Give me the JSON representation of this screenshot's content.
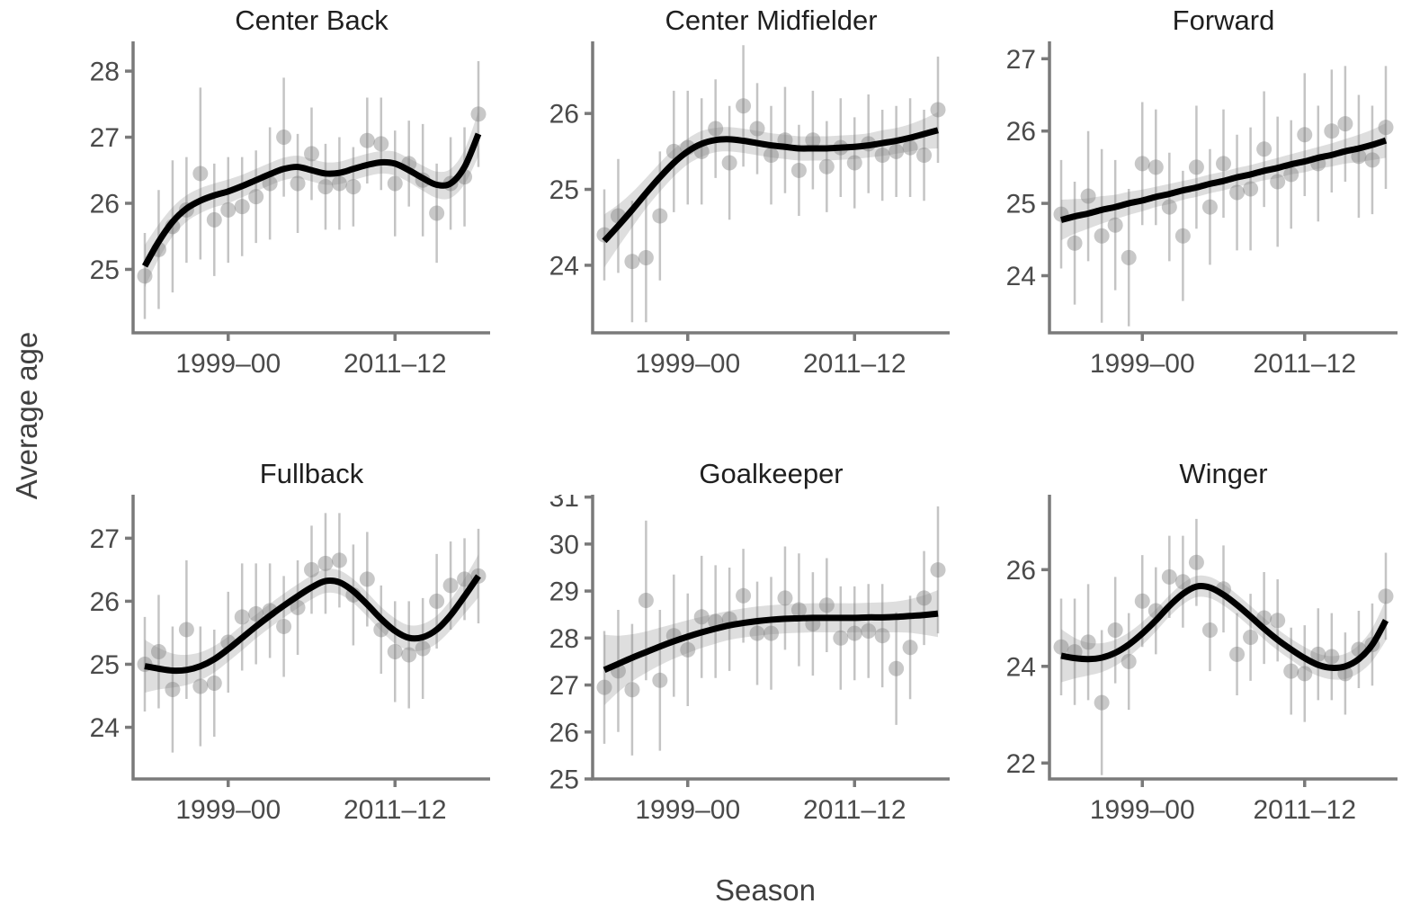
{
  "figure": {
    "y_axis_label": "Average age",
    "x_axis_label": "Season",
    "background_color": "#ffffff",
    "axis_line_color": "#7a7a7a",
    "tick_text_color": "#4a4a4a",
    "title_text_color": "#1f1f1f",
    "point_color": "rgba(125,125,125,0.42)",
    "errorbar_color": "rgba(125,125,125,0.45)",
    "ribbon_color": "rgba(125,125,125,0.25)",
    "smooth_color": "#000000"
  },
  "chart_data": {
    "type": "scatter",
    "smoother": "loess with confidence ribbon",
    "title": "",
    "xlabel": "Season",
    "ylabel": "Average age",
    "grid": false,
    "legend": "none",
    "x": [
      "1993–94",
      "1994–95",
      "1995–96",
      "1996–97",
      "1997–98",
      "1998–99",
      "1999–00",
      "2000–01",
      "2001–02",
      "2002–03",
      "2003–04",
      "2004–05",
      "2005–06",
      "2006–07",
      "2007–08",
      "2008–09",
      "2009–10",
      "2010–11",
      "2011–12",
      "2012–13",
      "2013–14",
      "2014–15",
      "2015–16",
      "2016–17",
      "2017–18"
    ],
    "x_tick_indices": [
      6,
      18
    ],
    "x_tick_labels": [
      "1999–00",
      "2011–12"
    ],
    "panels": [
      {
        "title": "Center Back",
        "y_ticks": [
          25,
          26,
          27,
          28
        ],
        "ylim": [
          24.04,
          28.45
        ],
        "points": [
          24.9,
          25.3,
          25.65,
          25.9,
          26.45,
          25.75,
          25.9,
          25.95,
          26.1,
          26.3,
          27.0,
          26.3,
          26.75,
          26.25,
          26.3,
          26.25,
          26.95,
          26.9,
          26.3,
          26.6,
          26.35,
          25.85,
          26.3,
          26.4,
          27.35
        ],
        "err": [
          0.65,
          0.9,
          1.0,
          0.8,
          1.3,
          0.85,
          0.8,
          0.75,
          0.7,
          0.85,
          0.9,
          0.75,
          0.7,
          0.65,
          0.7,
          0.6,
          0.65,
          0.7,
          0.8,
          0.65,
          0.85,
          0.75,
          0.7,
          0.75,
          0.8
        ],
        "smooth": [
          25.05,
          25.42,
          25.72,
          25.92,
          26.04,
          26.12,
          26.18,
          26.26,
          26.35,
          26.44,
          26.52,
          26.55,
          26.5,
          26.45,
          26.46,
          26.52,
          26.58,
          26.62,
          26.6,
          26.5,
          26.38,
          26.28,
          26.3,
          26.55,
          27.05
        ],
        "ribbon": [
          0.32,
          0.26,
          0.22,
          0.2,
          0.19,
          0.18,
          0.18,
          0.17,
          0.17,
          0.17,
          0.17,
          0.17,
          0.17,
          0.17,
          0.17,
          0.17,
          0.17,
          0.17,
          0.18,
          0.18,
          0.19,
          0.2,
          0.22,
          0.26,
          0.34
        ]
      },
      {
        "title": "Center Midfielder",
        "y_ticks": [
          24,
          25,
          26
        ],
        "ylim": [
          23.11,
          26.95
        ],
        "points": [
          24.4,
          24.65,
          24.05,
          24.1,
          24.65,
          25.5,
          25.55,
          25.5,
          25.8,
          25.35,
          26.1,
          25.8,
          25.45,
          25.65,
          25.25,
          25.65,
          25.3,
          25.55,
          25.35,
          25.6,
          25.45,
          25.5,
          25.55,
          25.45,
          26.05
        ],
        "err": [
          0.6,
          0.75,
          0.8,
          0.85,
          0.85,
          0.8,
          0.75,
          0.7,
          0.65,
          0.75,
          0.8,
          0.6,
          0.65,
          0.7,
          0.6,
          0.65,
          0.6,
          0.65,
          0.6,
          0.65,
          0.6,
          0.6,
          0.65,
          0.6,
          0.7
        ],
        "smooth": [
          24.32,
          24.52,
          24.73,
          24.95,
          25.16,
          25.35,
          25.5,
          25.6,
          25.65,
          25.66,
          25.64,
          25.61,
          25.58,
          25.56,
          25.54,
          25.54,
          25.54,
          25.55,
          25.56,
          25.58,
          25.61,
          25.64,
          25.68,
          25.73,
          25.78
        ],
        "ribbon": [
          0.35,
          0.28,
          0.23,
          0.2,
          0.19,
          0.18,
          0.17,
          0.17,
          0.16,
          0.16,
          0.16,
          0.16,
          0.16,
          0.16,
          0.16,
          0.16,
          0.16,
          0.16,
          0.16,
          0.16,
          0.17,
          0.17,
          0.18,
          0.2,
          0.24
        ]
      },
      {
        "title": "Forward",
        "y_ticks": [
          24,
          25,
          26,
          27
        ],
        "ylim": [
          23.21,
          27.24
        ],
        "points": [
          24.85,
          24.45,
          25.1,
          24.55,
          24.7,
          24.25,
          25.55,
          25.5,
          24.95,
          24.55,
          25.5,
          24.95,
          25.55,
          25.15,
          25.2,
          25.75,
          25.3,
          25.4,
          25.95,
          25.55,
          26.0,
          26.1,
          25.65,
          25.6,
          26.05
        ],
        "err": [
          0.75,
          0.85,
          0.9,
          1.2,
          0.9,
          0.95,
          0.85,
          0.8,
          0.75,
          0.9,
          0.85,
          0.8,
          0.75,
          0.8,
          0.85,
          0.8,
          0.9,
          0.75,
          0.85,
          0.8,
          0.85,
          0.8,
          0.85,
          0.75,
          0.85
        ],
        "smooth": [
          24.77,
          24.82,
          24.86,
          24.91,
          24.95,
          25.0,
          25.04,
          25.09,
          25.13,
          25.18,
          25.22,
          25.27,
          25.31,
          25.36,
          25.4,
          25.45,
          25.49,
          25.54,
          25.58,
          25.63,
          25.67,
          25.72,
          25.76,
          25.81,
          25.87
        ],
        "ribbon": [
          0.28,
          0.24,
          0.21,
          0.19,
          0.17,
          0.16,
          0.15,
          0.14,
          0.14,
          0.13,
          0.13,
          0.13,
          0.13,
          0.13,
          0.13,
          0.13,
          0.14,
          0.14,
          0.15,
          0.15,
          0.16,
          0.17,
          0.19,
          0.21,
          0.24
        ]
      },
      {
        "title": "Fullback",
        "y_ticks": [
          24,
          25,
          26,
          27
        ],
        "ylim": [
          23.18,
          27.69
        ],
        "points": [
          25.0,
          25.2,
          24.6,
          25.55,
          24.65,
          24.7,
          25.35,
          25.75,
          25.8,
          25.85,
          25.6,
          25.9,
          26.5,
          26.6,
          26.65,
          26.1,
          26.35,
          25.55,
          25.2,
          25.15,
          25.25,
          26.0,
          26.25,
          26.35,
          26.4
        ],
        "err": [
          0.75,
          0.9,
          1.0,
          1.1,
          0.95,
          0.85,
          0.8,
          0.85,
          0.8,
          0.75,
          0.8,
          0.75,
          0.7,
          0.8,
          0.75,
          0.8,
          0.75,
          0.7,
          0.8,
          0.85,
          0.8,
          0.75,
          0.7,
          0.65,
          0.75
        ],
        "smooth": [
          24.97,
          24.93,
          24.9,
          24.91,
          24.97,
          25.08,
          25.24,
          25.42,
          25.6,
          25.77,
          25.93,
          26.08,
          26.22,
          26.32,
          26.3,
          26.16,
          25.95,
          25.72,
          25.53,
          25.42,
          25.43,
          25.55,
          25.78,
          26.08,
          26.4
        ],
        "ribbon": [
          0.42,
          0.33,
          0.27,
          0.24,
          0.22,
          0.21,
          0.2,
          0.2,
          0.19,
          0.19,
          0.19,
          0.19,
          0.19,
          0.19,
          0.19,
          0.19,
          0.19,
          0.19,
          0.2,
          0.2,
          0.21,
          0.22,
          0.24,
          0.28,
          0.34
        ]
      },
      {
        "title": "Goalkeeper",
        "y_ticks": [
          25,
          26,
          27,
          28,
          29,
          30,
          31
        ],
        "ylim": [
          25.0,
          31.05
        ],
        "points": [
          26.95,
          27.3,
          26.9,
          28.8,
          27.1,
          28.05,
          27.75,
          28.45,
          28.35,
          28.4,
          28.9,
          28.1,
          28.1,
          28.85,
          28.6,
          28.3,
          28.7,
          28.0,
          28.1,
          28.15,
          28.05,
          27.35,
          27.8,
          28.85,
          29.45
        ],
        "err": [
          1.2,
          1.3,
          1.4,
          1.7,
          1.5,
          1.3,
          1.2,
          1.3,
          1.2,
          1.1,
          1.0,
          1.1,
          1.2,
          1.1,
          1.2,
          1.1,
          1.0,
          1.1,
          1.0,
          1.0,
          1.1,
          1.2,
          1.1,
          1.0,
          1.35
        ],
        "smooth": [
          27.32,
          27.45,
          27.58,
          27.7,
          27.82,
          27.93,
          28.03,
          28.12,
          28.2,
          28.27,
          28.32,
          28.36,
          28.39,
          28.41,
          28.42,
          28.43,
          28.43,
          28.43,
          28.43,
          28.44,
          28.44,
          28.45,
          28.47,
          28.49,
          28.52
        ],
        "ribbon": [
          0.75,
          0.6,
          0.5,
          0.44,
          0.4,
          0.37,
          0.35,
          0.33,
          0.32,
          0.31,
          0.31,
          0.31,
          0.31,
          0.31,
          0.31,
          0.31,
          0.31,
          0.31,
          0.31,
          0.31,
          0.32,
          0.33,
          0.36,
          0.42,
          0.5
        ]
      },
      {
        "title": "Winger",
        "y_ticks": [
          22,
          24,
          26
        ],
        "ylim": [
          21.67,
          27.55
        ],
        "points": [
          24.4,
          24.3,
          24.5,
          23.25,
          24.75,
          24.1,
          25.35,
          25.15,
          25.85,
          25.75,
          26.15,
          24.75,
          25.6,
          24.25,
          24.6,
          25.0,
          24.95,
          23.9,
          23.85,
          24.25,
          24.2,
          23.85,
          24.35,
          24.45,
          25.45
        ],
        "err": [
          1.0,
          1.1,
          1.2,
          1.5,
          1.1,
          1.0,
          0.95,
          0.9,
          0.85,
          0.95,
          0.9,
          0.85,
          0.9,
          0.85,
          0.9,
          0.95,
          0.85,
          0.9,
          1.0,
          0.95,
          0.9,
          0.85,
          0.8,
          0.85,
          0.9
        ],
        "smooth": [
          24.22,
          24.17,
          24.15,
          24.18,
          24.28,
          24.45,
          24.68,
          24.95,
          25.25,
          25.5,
          25.65,
          25.63,
          25.48,
          25.27,
          25.03,
          24.78,
          24.55,
          24.35,
          24.17,
          24.03,
          23.97,
          24.0,
          24.15,
          24.45,
          24.95
        ],
        "ribbon": [
          0.55,
          0.42,
          0.34,
          0.3,
          0.27,
          0.25,
          0.24,
          0.23,
          0.22,
          0.22,
          0.22,
          0.22,
          0.22,
          0.22,
          0.22,
          0.22,
          0.22,
          0.22,
          0.23,
          0.23,
          0.24,
          0.26,
          0.29,
          0.34,
          0.42
        ]
      }
    ]
  }
}
